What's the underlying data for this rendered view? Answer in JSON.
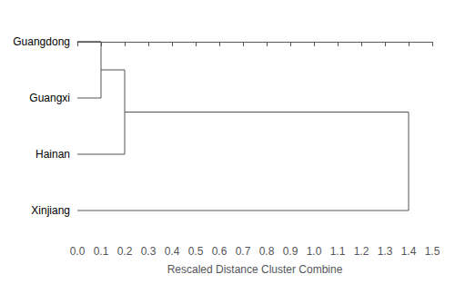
{
  "chart_data": {
    "type": "dendrogram",
    "categories": [
      "Guangdong",
      "Guangxi",
      "Hainan",
      "Xinjiang"
    ],
    "merge_distances": [
      0.1,
      0.2,
      1.4
    ],
    "color": "#555555",
    "xlabel": "Rescaled Distance Cluster Combine",
    "xlim": [
      0.0,
      1.5
    ],
    "xticks": [
      {
        "value": 0,
        "label": "0.0"
      },
      0.1,
      0.2,
      0.3,
      0.4,
      0.5,
      0.6,
      0.7,
      0.8,
      0.9,
      {
        "value": 1,
        "label": "1.0"
      },
      1.1,
      1.2,
      1.3,
      1.4,
      1.5
    ],
    "grid": false
  }
}
